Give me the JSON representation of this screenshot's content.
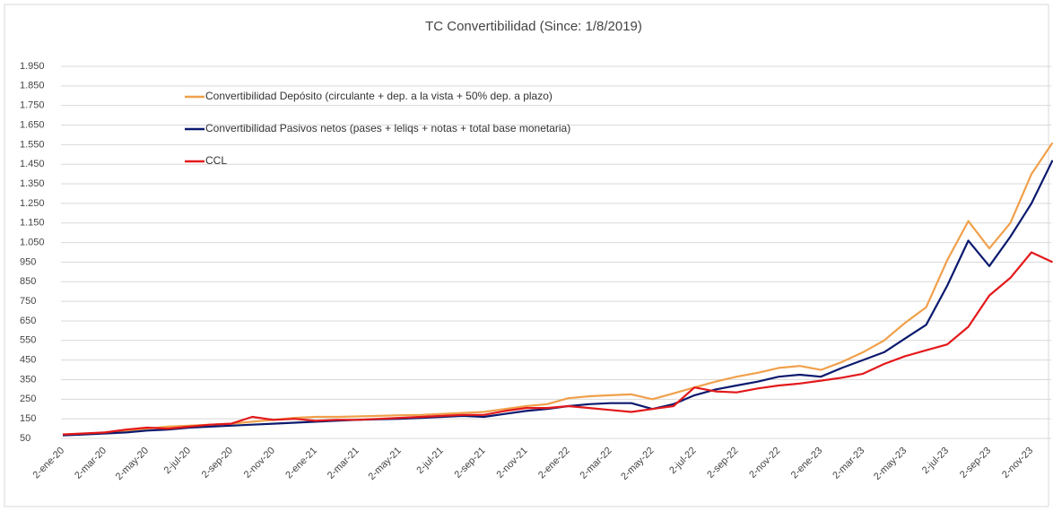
{
  "chart_data": {
    "type": "line",
    "title": "TC Convertibilidad (Since: 1/8/2019)",
    "categories": [
      "2-ene-20",
      null,
      "2-mar-20",
      null,
      "2-may-20",
      null,
      "2-jul-20",
      null,
      "2-sep-20",
      null,
      "2-nov-20",
      null,
      "2-ene-21",
      null,
      "2-mar-21",
      null,
      "2-may-21",
      null,
      "2-jul-21",
      null,
      "2-sep-21",
      null,
      "2-nov-21",
      null,
      "2-ene-22",
      null,
      "2-mar-22",
      null,
      "2-may-22",
      null,
      "2-jul-22",
      null,
      "2-sep-22",
      null,
      "2-nov-22",
      null,
      "2-ene-23",
      null,
      "2-mar-23",
      null,
      "2-may-23",
      null,
      "2-jul-23",
      null,
      "2-sep-23",
      null,
      "2-nov-23",
      null
    ],
    "series": [
      {
        "name": "Convertibilidad Depósito (circulante + dep. a la vista + 50% dep. a plazo)",
        "color": "#f0a04b",
        "values": [
          70,
          72,
          80,
          90,
          100,
          110,
          115,
          120,
          125,
          135,
          145,
          155,
          160,
          160,
          162,
          165,
          168,
          170,
          175,
          180,
          185,
          200,
          215,
          225,
          255,
          265,
          270,
          275,
          250,
          280,
          310,
          340,
          365,
          385,
          410,
          420,
          400,
          440,
          490,
          550,
          640,
          720,
          960,
          1160,
          1020,
          1150,
          1400,
          1560
        ]
      },
      {
        "name": "Convertibilidad Pasivos netos (pases + leliqs + notas + total base monetaria)",
        "color": "#0b1a6e",
        "values": [
          65,
          70,
          75,
          80,
          90,
          95,
          105,
          110,
          115,
          120,
          125,
          130,
          135,
          140,
          145,
          148,
          150,
          155,
          160,
          165,
          160,
          175,
          190,
          200,
          215,
          225,
          230,
          230,
          200,
          225,
          270,
          300,
          320,
          340,
          365,
          375,
          365,
          410,
          450,
          490,
          560,
          630,
          830,
          1060,
          930,
          1080,
          1250,
          1470
        ]
      },
      {
        "name": "CCL",
        "color": "#e3191b",
        "values": [
          70,
          75,
          80,
          95,
          105,
          100,
          110,
          120,
          125,
          160,
          145,
          150,
          140,
          145,
          145,
          150,
          155,
          160,
          165,
          170,
          170,
          190,
          205,
          205,
          215,
          205,
          195,
          185,
          200,
          215,
          310,
          290,
          285,
          305,
          320,
          330,
          345,
          360,
          380,
          430,
          470,
          500,
          530,
          620,
          780,
          870,
          1000,
          950
        ]
      }
    ],
    "ylim": [
      50,
      1950
    ],
    "yticks": [
      50,
      150,
      250,
      350,
      450,
      550,
      650,
      750,
      850,
      950,
      {
        "value": 1050,
        "label": "1.050"
      },
      {
        "value": 1150,
        "label": "1.150"
      },
      {
        "value": 1250,
        "label": "1.250"
      },
      {
        "value": 1350,
        "label": "1.350"
      },
      {
        "value": 1450,
        "label": "1.450"
      },
      {
        "value": 1550,
        "label": "1.550"
      },
      {
        "value": 1650,
        "label": "1.650"
      },
      {
        "value": 1750,
        "label": "1.750"
      },
      {
        "value": 1850,
        "label": "1.850"
      },
      {
        "value": 1950,
        "label": "1.950"
      }
    ],
    "grid": true
  }
}
